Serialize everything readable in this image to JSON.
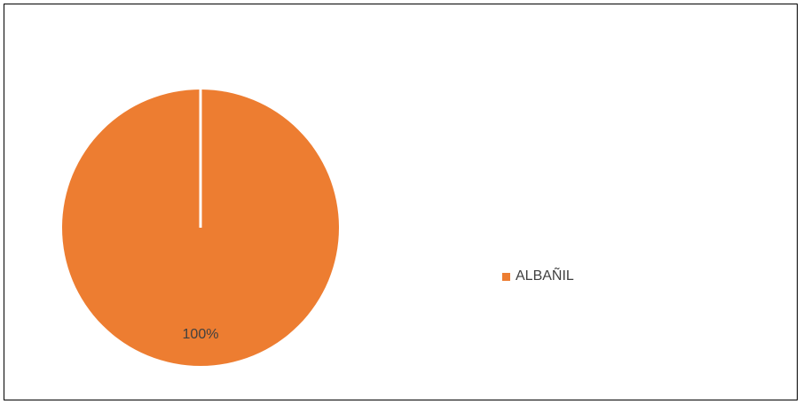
{
  "chart_data": {
    "type": "pie",
    "categories": [
      "ALBAÑIL"
    ],
    "values": [
      100
    ],
    "data_labels": [
      "100%"
    ],
    "legend_position": "right",
    "colors": [
      "#ED7D31"
    ]
  }
}
